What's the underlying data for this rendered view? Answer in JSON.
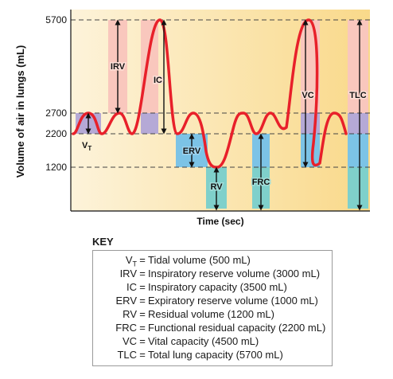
{
  "diagram": {
    "y_axis_label": "Volume of air in lungs (mL)",
    "x_axis_label": "Time (sec)",
    "y_ticks": [
      "5700",
      "2700",
      "2200",
      "1200"
    ],
    "region_labels": {
      "vt_main": "V",
      "vt_sub": "T",
      "irv": "IRV",
      "ic": "IC",
      "erv": "ERV",
      "rv": "RV",
      "frc": "FRC",
      "vc": "VC",
      "tlc": "TLC"
    },
    "colors": {
      "background_gradient_start": "#fdf3da",
      "background_gradient_end": "#f9d98a",
      "pink": "#f9c7bd",
      "purple": "#b5a9d6",
      "blue": "#7cc3e6",
      "teal": "#7fd0cb",
      "curve": "#e8202a"
    }
  },
  "key": {
    "title": "KEY",
    "items": [
      {
        "abbr": "V",
        "sub": "T",
        "desc": "Tidal volume (500 mL)"
      },
      {
        "abbr": "IRV",
        "sub": "",
        "desc": "Inspiratory reserve volume (3000 mL)"
      },
      {
        "abbr": "IC",
        "sub": "",
        "desc": "Inspiratory capacity (3500 mL)"
      },
      {
        "abbr": "ERV",
        "sub": "",
        "desc": "Expiratory reserve volume (1000 mL)"
      },
      {
        "abbr": "RV",
        "sub": "",
        "desc": "Residual volume (1200 mL)"
      },
      {
        "abbr": "FRC",
        "sub": "",
        "desc": "Functional residual capacity (2200 mL)"
      },
      {
        "abbr": "VC",
        "sub": "",
        "desc": "Vital capacity (4500 mL)"
      },
      {
        "abbr": "TLC",
        "sub": "",
        "desc": "Total lung capacity (5700 mL)"
      }
    ]
  }
}
